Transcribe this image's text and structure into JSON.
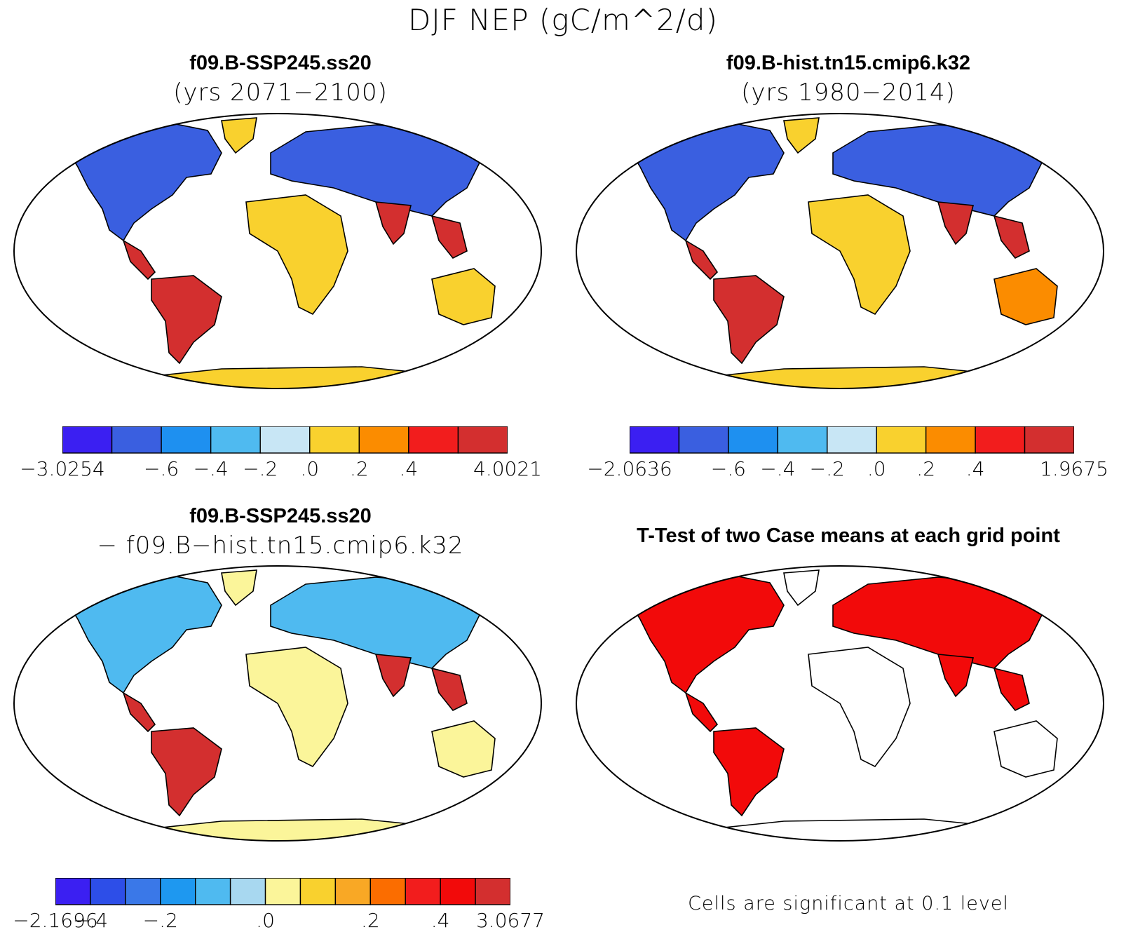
{
  "figure": {
    "title": "DJF NEP (gC/m^2/d)"
  },
  "panels": [
    {
      "title": "f09.B-SSP245.ss20",
      "subtitle": "(yrs 2071−2100)",
      "colors": [
        "#3b1ff2",
        "#3a5fe0",
        "#1e90f0",
        "#4fbaf0",
        "#c8e6f5",
        "#f9d12e",
        "#fb8c00",
        "#f21d1d",
        "#d32f2f"
      ],
      "labels": [
        "−3.0254",
        "−.6",
        "−.4",
        "−.2",
        ".0",
        ".2",
        ".4",
        "4.0021"
      ],
      "label_edges": [
        0,
        2,
        3,
        4,
        5,
        6,
        7,
        9
      ],
      "fill": {
        "north": "#3a5fe0",
        "mid": "#f9d12e",
        "tropic": "#d32f2f",
        "south": "#f9d12e",
        "ant": "#f9d12e"
      }
    },
    {
      "title": "f09.B-hist.tn15.cmip6.k32",
      "subtitle": "(yrs 1980−2014)",
      "colors": [
        "#3b1ff2",
        "#3a5fe0",
        "#1e90f0",
        "#4fbaf0",
        "#c8e6f5",
        "#f9d12e",
        "#fb8c00",
        "#f21d1d",
        "#d32f2f"
      ],
      "labels": [
        "−2.0636",
        "−.6",
        "−.4",
        "−.2",
        ".0",
        ".2",
        ".4",
        "1.9675"
      ],
      "label_edges": [
        0,
        2,
        3,
        4,
        5,
        6,
        7,
        9
      ],
      "fill": {
        "north": "#3a5fe0",
        "mid": "#f9d12e",
        "tropic": "#d32f2f",
        "south": "#fb8c00",
        "ant": "#f9d12e"
      }
    },
    {
      "title": "f09.B-SSP245.ss20",
      "subtitle": "− f09.B−hist.tn15.cmip6.k32",
      "colors": [
        "#3b1ff2",
        "#2d4ee8",
        "#3a78e8",
        "#1e98f0",
        "#4fbaf0",
        "#a8d8f0",
        "#fbf59a",
        "#f9d12e",
        "#f9a825",
        "#fb6d00",
        "#f21d1d",
        "#f20a0a",
        "#d32f2f"
      ],
      "labels": [
        "−2.1696",
        "−.4",
        "−.2",
        ".0",
        ".2",
        ".4",
        "3.0677"
      ],
      "label_edges": [
        0,
        1,
        3,
        6,
        9,
        11,
        13
      ],
      "fill": {
        "north": "#4fbaf0",
        "mid": "#fbf59a",
        "tropic": "#d32f2f",
        "south": "#fbf59a",
        "ant": "#fbf59a"
      }
    },
    {
      "title": "T-Test of two Case means at each grid point",
      "subtitle": "",
      "note": "Cells are significant at 0.1 level",
      "fill": {
        "north": "#f20a0a",
        "mid": "#ffffff",
        "tropic": "#f20a0a",
        "south": "#ffffff",
        "ant": "#ffffff"
      }
    }
  ]
}
